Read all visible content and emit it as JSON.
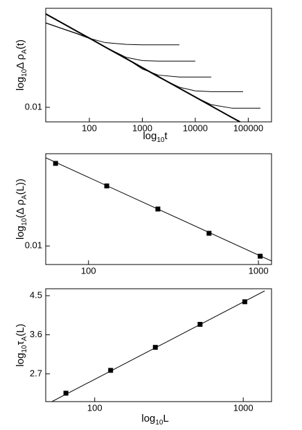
{
  "chart_data": [
    {
      "type": "line",
      "xscale": "log",
      "yscale": "log",
      "xlabel": [
        "log",
        "10",
        "t"
      ],
      "ylabel": [
        "log",
        "10",
        "Δ ρ",
        "A",
        "(t)"
      ],
      "xlim": [
        15,
        275000
      ],
      "ylim": [
        0.00851,
        0.03
      ],
      "xticks": [
        100,
        1000,
        10000,
        100000
      ],
      "yticks": [
        0.01
      ],
      "series": [
        {
          "color": "#000000",
          "linewidth": 2,
          "mode": "line",
          "x": [
            15,
            30,
            60,
            100,
            200,
            500,
            1000,
            2000,
            5000,
            10000,
            20000,
            50000,
            70000
          ],
          "values": [
            0.0282,
            0.02555,
            0.02315,
            0.02155,
            0.01952,
            0.01714,
            0.01554,
            0.01407,
            0.01236,
            0.01121,
            0.01015,
            0.00891,
            0.00851
          ]
        },
        {
          "color": "#000000",
          "linewidth": 1,
          "mode": "line",
          "x": [
            15,
            30,
            60,
            100,
            200,
            500,
            1000,
            5000
          ],
          "values": [
            0.0255,
            0.024,
            0.0226,
            0.0215,
            0.0205,
            0.0201,
            0.02,
            0.02
          ]
        },
        {
          "color": "#000000",
          "linewidth": 1,
          "mode": "line",
          "x": [
            15,
            30,
            60,
            100,
            200,
            500,
            1000,
            2000,
            10000
          ],
          "values": [
            0.0255,
            0.024,
            0.0226,
            0.0215,
            0.0195,
            0.0174,
            0.0168,
            0.0167,
            0.0167
          ]
        },
        {
          "color": "#000000",
          "linewidth": 1,
          "mode": "line",
          "x": [
            15,
            30,
            60,
            100,
            200,
            500,
            1000,
            2000,
            5000,
            20000
          ],
          "values": [
            0.0255,
            0.024,
            0.0226,
            0.0215,
            0.0195,
            0.0172,
            0.0153,
            0.0143,
            0.014,
            0.014
          ]
        },
        {
          "color": "#000000",
          "linewidth": 1,
          "mode": "line",
          "x": [
            15,
            30,
            60,
            100,
            200,
            500,
            1000,
            2000,
            5000,
            10000,
            20000,
            80000
          ],
          "values": [
            0.0255,
            0.024,
            0.0226,
            0.0215,
            0.0195,
            0.0172,
            0.0155,
            0.014,
            0.0125,
            0.012,
            0.0119,
            0.0119
          ]
        },
        {
          "color": "#000000",
          "linewidth": 1,
          "mode": "line",
          "x": [
            15,
            30,
            60,
            100,
            200,
            500,
            1000,
            2000,
            5000,
            10000,
            20000,
            50000,
            170000
          ],
          "values": [
            0.0255,
            0.024,
            0.0226,
            0.0215,
            0.0195,
            0.0172,
            0.0155,
            0.014,
            0.0124,
            0.0112,
            0.0103,
            0.0099,
            0.0099
          ]
        }
      ]
    },
    {
      "type": "line",
      "xscale": "log",
      "yscale": "log",
      "ylabel": [
        "log",
        "10",
        "(Δ ρ",
        "A",
        "(L))"
      ],
      "xlim": [
        56,
        1194
      ],
      "ylim": [
        0.0087,
        0.02
      ],
      "xticks": [
        100,
        1000
      ],
      "yticks": [
        0.01
      ],
      "series": [
        {
          "color": "#000000",
          "mode": "markers",
          "marker": "square",
          "x": [
            64,
            128,
            256,
            512,
            1024
          ],
          "values": [
            0.0186,
            0.0157,
            0.0132,
            0.011,
            0.00926
          ]
        },
        {
          "color": "#000000",
          "linewidth": 1,
          "mode": "line",
          "x": [
            56,
            1194
          ],
          "values": [
            0.0194,
            0.00893
          ]
        }
      ]
    },
    {
      "type": "line",
      "xscale": "log",
      "yscale": "linear",
      "xlabel": [
        "log",
        "10",
        "L"
      ],
      "ylabel": [
        "log",
        "10",
        "τ",
        "A",
        "(L)"
      ],
      "xlim": [
        46.8,
        1550
      ],
      "ylim": [
        2.06,
        4.66
      ],
      "xticks": [
        100,
        1000
      ],
      "yticks": [
        2.7,
        3.6,
        4.5
      ],
      "series": [
        {
          "color": "#000000",
          "mode": "markers",
          "marker": "square",
          "x": [
            64,
            128,
            256,
            512,
            1024
          ],
          "values": [
            2.254,
            2.78,
            3.31,
            3.84,
            4.36
          ]
        },
        {
          "color": "#000000",
          "linewidth": 1,
          "mode": "line",
          "x": [
            51.5,
            1394
          ],
          "values": [
            2.06,
            4.61
          ]
        }
      ]
    }
  ]
}
